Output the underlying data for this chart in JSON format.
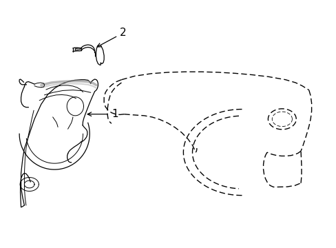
{
  "background_color": "#ffffff",
  "line_color": "#000000",
  "label1_text": "1",
  "label2_text": "2"
}
